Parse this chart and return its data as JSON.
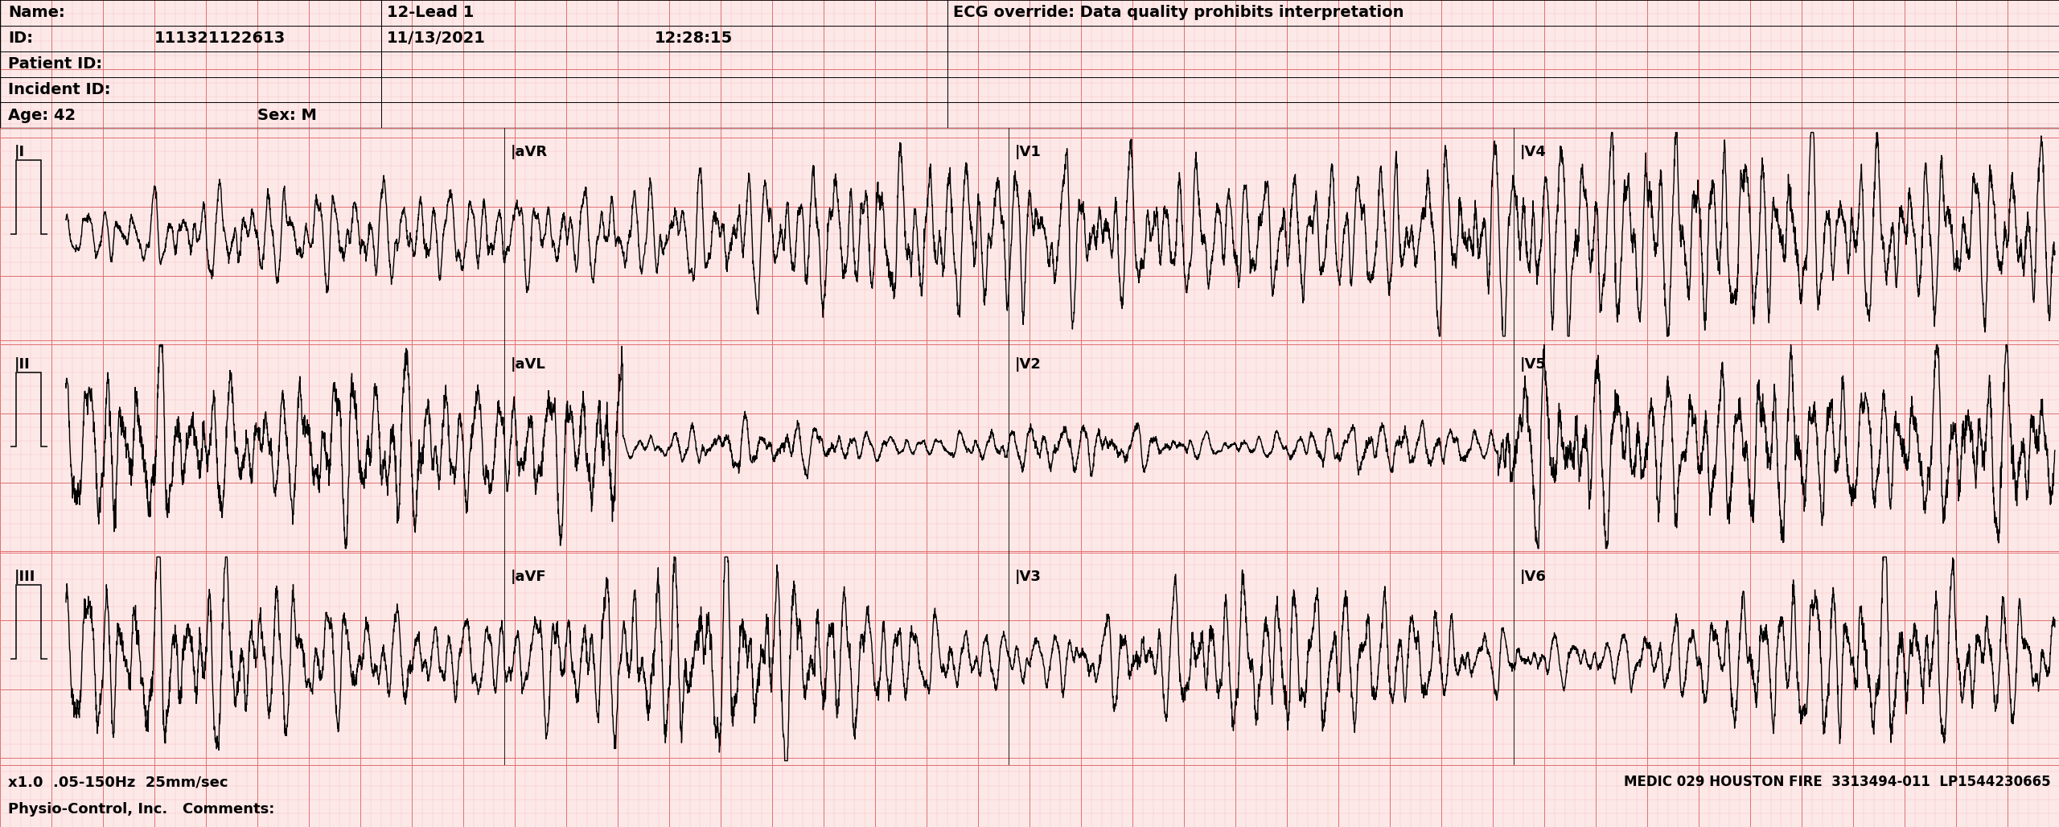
{
  "bg_color": "#fde8e8",
  "grid_minor_color": "#f5b8b8",
  "grid_major_color": "#e07070",
  "ecg_color": "#000000",
  "header_bg": "#fde8e8",
  "lead_labels_row1": [
    "|I",
    "|aVR",
    "|V1",
    "|V4"
  ],
  "lead_labels_row2": [
    "|II",
    "|aVL",
    "|V2",
    "|V5"
  ],
  "lead_labels_row3": [
    "|III",
    "|aVF",
    "|V3",
    "|V6"
  ],
  "hdr_name": "Name:",
  "hdr_lead": "12-Lead 1",
  "hdr_ecg_override": "ECG override: Data quality prohibits interpretation",
  "hdr_id": "ID:",
  "hdr_id_val": "111321122613",
  "hdr_date": "11/13/2021",
  "hdr_time": "12:28:15",
  "hdr_patient": "Patient ID:",
  "hdr_incident": "Incident ID:",
  "hdr_age": "Age: 42",
  "hdr_sex": "Sex: M",
  "footer_left1": "x1.0  .05-150Hz  25mm/sec",
  "footer_left2": "Physio-Control, Inc.   Comments:",
  "footer_right": "MEDIC 029 HOUSTON FIRE  3313494-011  LP1544230665",
  "figsize": [
    25.6,
    10.28
  ],
  "dpi": 100,
  "ecg_lw": 1.0,
  "header_fontsize": 14,
  "label_fontsize": 13,
  "footer_fontsize": 13
}
